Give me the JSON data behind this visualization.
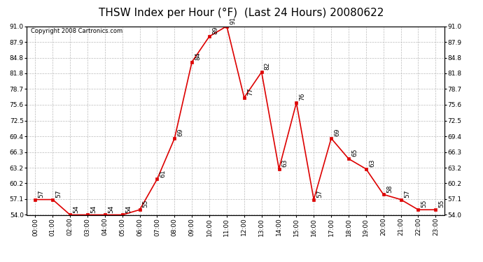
{
  "title": "THSW Index per Hour (°F)  (Last 24 Hours) 20080622",
  "copyright": "Copyright 2008 Cartronics.com",
  "hours": [
    "00:00",
    "01:00",
    "02:00",
    "03:00",
    "04:00",
    "05:00",
    "06:00",
    "07:00",
    "08:00",
    "09:00",
    "10:00",
    "11:00",
    "12:00",
    "13:00",
    "14:00",
    "15:00",
    "16:00",
    "17:00",
    "18:00",
    "19:00",
    "20:00",
    "21:00",
    "22:00",
    "23:00"
  ],
  "values": [
    57,
    57,
    54,
    54,
    54,
    54,
    55,
    61,
    69,
    84,
    89,
    91,
    77,
    82,
    63,
    76,
    57,
    69,
    65,
    63,
    58,
    57,
    55,
    55
  ],
  "line_color": "#dd0000",
  "marker_color": "#dd0000",
  "bg_color": "#ffffff",
  "grid_color": "#bbbbbb",
  "ylim_min": 54.0,
  "ylim_max": 91.0,
  "yticks": [
    54.0,
    57.1,
    60.2,
    63.2,
    66.3,
    69.4,
    72.5,
    75.6,
    78.7,
    81.8,
    84.8,
    87.9,
    91.0
  ],
  "ytick_labels": [
    "54.0",
    "57.1",
    "60.2",
    "63.2",
    "66.3",
    "69.4",
    "72.5",
    "75.6",
    "78.7",
    "81.8",
    "84.8",
    "87.9",
    "91.0"
  ],
  "title_fontsize": 11,
  "label_fontsize": 6.5,
  "tick_fontsize": 6.5,
  "copyright_fontsize": 6
}
